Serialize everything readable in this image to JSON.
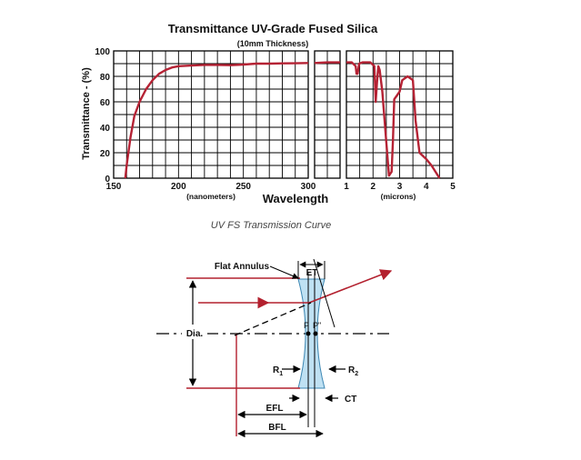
{
  "chart_data": {
    "type": "line",
    "title": "Transmittance UV-Grade Fused Silica",
    "subtitle": "(10mm Thickness)",
    "ylabel": "Transmittance - (%)",
    "xlabel": "Wavelength",
    "ylim": [
      0,
      100
    ],
    "yticks": [
      "0",
      "20",
      "40",
      "60",
      "80",
      "100"
    ],
    "grid": true,
    "panels": [
      {
        "unit_label": "(nanometers)",
        "xlim": [
          150,
          300
        ],
        "xticks": [
          "150",
          "200",
          "250",
          "300"
        ],
        "series": [
          {
            "x": [
              159,
              160,
              163,
              166,
              170,
              175,
              180,
              185,
              190,
              195,
              200,
              210,
              220,
              230,
              240,
              250,
              260,
              270,
              280,
              290,
              300
            ],
            "y": [
              0,
              10,
              32,
              49,
              60,
              70,
              77,
              82,
              85,
              87,
              88,
              88.5,
              89,
              89,
              88.8,
              89.3,
              90,
              90,
              90.2,
              90.3,
              90.5
            ]
          }
        ]
      },
      {
        "unit_label": "",
        "xlim": [
          0,
          1
        ],
        "xticks": [],
        "series": [
          {
            "x": [
              0,
              0.5,
              1
            ],
            "y": [
              90.5,
              91,
              91
            ]
          }
        ]
      },
      {
        "unit_label": "(microns)",
        "xlim": [
          1,
          5
        ],
        "xticks": [
          "1",
          "2",
          "3",
          "4",
          "5"
        ],
        "series": [
          {
            "x": [
              1.0,
              1.2,
              1.35,
              1.38,
              1.42,
              1.48,
              1.6,
              1.9,
              2.05,
              2.1,
              2.15,
              2.2,
              2.25,
              2.35,
              2.5,
              2.6,
              2.7,
              2.75,
              2.8,
              2.9,
              3.0,
              3.1,
              3.3,
              3.5,
              3.6,
              3.75,
              4.0,
              4.2,
              4.5
            ],
            "y": [
              91,
              91,
              88,
              82,
              82,
              90,
              91,
              91,
              88,
              60,
              75,
              88,
              85,
              68,
              28,
              2,
              5,
              30,
              62,
              65,
              68,
              77,
              80,
              77,
              45,
              20,
              15,
              10,
              0
            ]
          }
        ]
      }
    ]
  },
  "caption": "UV FS Transmission Curve",
  "diagram": {
    "labels": {
      "flat_annulus": "Flat Annulus",
      "et": "ET",
      "dia": "Dia.",
      "p": "P",
      "p_double_prime": "P\"",
      "r1_main": "R",
      "r1_sub": "1",
      "r2_main": "R",
      "r2_sub": "2",
      "ct": "CT",
      "efl": "EFL",
      "bfl": "BFL"
    },
    "colors": {
      "lens_fill": "#bfe1f3",
      "ray": "#b3202e",
      "line": "#000000",
      "curve": "#b52234"
    }
  }
}
